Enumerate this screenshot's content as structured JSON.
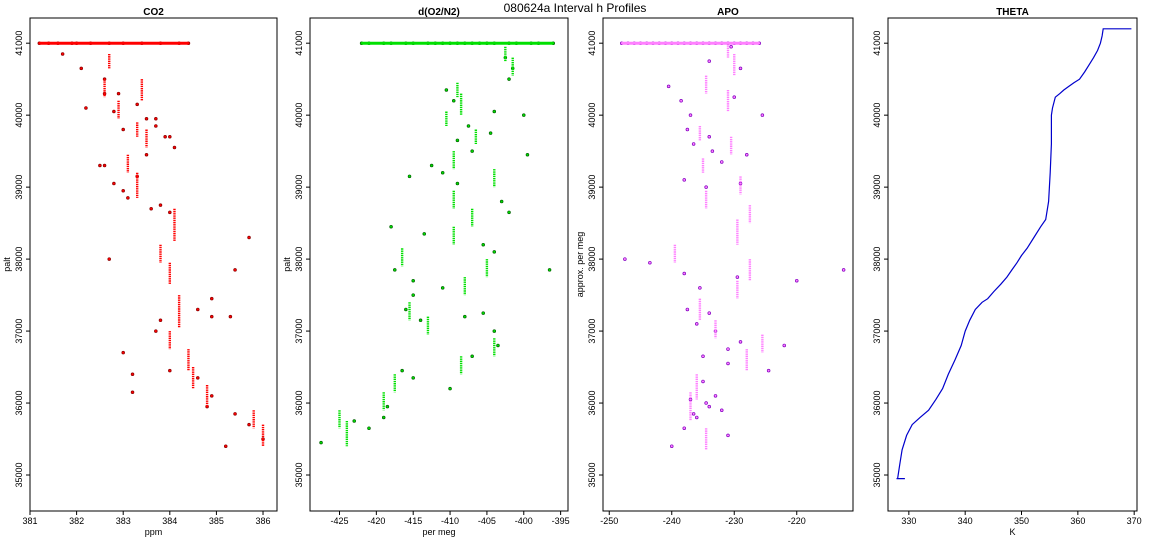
{
  "figure": {
    "title": "080624a   Interval h Profiles"
  },
  "chart_data": [
    {
      "type": "scatter",
      "title": "CO2",
      "xlabel": "ppm",
      "ylabel": "palt",
      "xlim": [
        381,
        386.3
      ],
      "ylim": [
        34500,
        41350
      ],
      "xticks": [
        381,
        382,
        383,
        384,
        385,
        386
      ],
      "yticks": [
        35000,
        36000,
        37000,
        38000,
        39000,
        40000,
        41000
      ],
      "color": "#ff0000",
      "edge_color": "#8b0000",
      "series": [
        {
          "name": "",
          "style": "points",
          "x": [
            381.2,
            381.4,
            381.6,
            381.9,
            382.0,
            382.3,
            382.7,
            383.0,
            383.4,
            383.8,
            384.2,
            384.4,
            381.7,
            382.1,
            382.6,
            382.9,
            383.3,
            383.5,
            383.7,
            384.0,
            384.1,
            382.2,
            382.5,
            382.8,
            383.1,
            383.6
          ],
          "y": [
            41000,
            41000,
            41000,
            41000,
            41000,
            41000,
            41000,
            41000,
            41000,
            41000,
            41000,
            41000,
            40850,
            40650,
            40500,
            40300,
            40150,
            39950,
            39850,
            39700,
            39550,
            40100,
            39300,
            39050,
            38850,
            38700
          ]
        },
        {
          "name": "",
          "style": "points",
          "x": [
            382.6,
            382.8,
            383.7,
            383.0,
            383.9,
            383.5,
            382.6,
            383.3,
            383.0,
            383.8,
            384.0,
            382.7,
            385.7,
            385.4,
            384.9,
            384.6,
            384.9,
            385.3,
            383.8,
            383.7,
            383.0,
            383.2,
            384.0,
            384.6,
            383.2,
            384.9,
            384.8,
            385.4,
            385.7,
            385.2,
            386.0
          ],
          "y": [
            40300,
            40050,
            39950,
            39800,
            39700,
            39450,
            39300,
            39150,
            38950,
            38750,
            38650,
            38000,
            38300,
            37850,
            37450,
            37300,
            37200,
            37200,
            37150,
            37000,
            36700,
            36400,
            36450,
            36350,
            36150,
            36100,
            35950,
            35850,
            35700,
            35400,
            35500
          ]
        },
        {
          "name": "",
          "style": "segments",
          "x": [
            382.7,
            382.6,
            383.4,
            382.9,
            383.3,
            383.5,
            383.1,
            383.3,
            384.1,
            383.8,
            384.0,
            384.2,
            384.0,
            384.4,
            384.5,
            384.8,
            385.8,
            386.0
          ],
          "y0": [
            40850,
            40500,
            40500,
            40200,
            39900,
            39800,
            39450,
            39200,
            38700,
            38200,
            37950,
            37500,
            37000,
            36750,
            36500,
            36250,
            35900,
            35700
          ],
          "y1": [
            40650,
            40250,
            40200,
            39950,
            39700,
            39550,
            39200,
            38850,
            38250,
            37950,
            37650,
            37050,
            36750,
            36450,
            36200,
            35950,
            35650,
            35400
          ]
        }
      ]
    },
    {
      "type": "scatter",
      "title": "d(O2/N2)",
      "xlabel": "per meg",
      "ylabel": "palt",
      "xlim": [
        -429,
        -394
      ],
      "ylim": [
        34500,
        41350
      ],
      "xticks": [
        -425,
        -420,
        -415,
        -410,
        -405,
        -400,
        -395
      ],
      "yticks": [
        35000,
        36000,
        37000,
        38000,
        39000,
        40000,
        41000
      ],
      "color": "#00e000",
      "edge_color": "#006400",
      "series": [
        {
          "name": "",
          "style": "points",
          "x": [
            -422,
            -419,
            -416,
            -413,
            -411,
            -409,
            -407,
            -405,
            -402,
            -399,
            -396,
            -421,
            -418,
            -415,
            -412,
            -410,
            -408,
            -406,
            -404,
            -401,
            -398
          ],
          "y": [
            41000,
            41000,
            41000,
            41000,
            41000,
            41000,
            41000,
            41000,
            41000,
            41000,
            41000,
            41000,
            41000,
            41000,
            41000,
            41000,
            41000,
            41000,
            41000,
            41000,
            41000
          ]
        },
        {
          "name": "",
          "style": "points",
          "x": [
            -402.5,
            -401.5,
            -402.0,
            -410.5,
            -409.5,
            -404.0,
            -400.0,
            -407.5,
            -404.5,
            -409.0,
            -407.0,
            -399.5,
            -412.5,
            -411.0,
            -415.5,
            -409.0,
            -403.0,
            -402.0,
            -418.0,
            -413.5,
            -405.5,
            -404.0,
            -396.5,
            -417.5,
            -415.0,
            -411.0,
            -415.0,
            -416.0,
            -405.5,
            -408.0,
            -414.0,
            -404.0,
            -403.5,
            -407.0,
            -416.5,
            -415.0,
            -410.0,
            -419.0,
            -423.0,
            -421.0,
            -427.5,
            -418.5
          ],
          "y": [
            40800,
            40650,
            40500,
            40350,
            40200,
            40050,
            40000,
            39850,
            39750,
            39650,
            39500,
            39450,
            39300,
            39200,
            39150,
            39050,
            38800,
            38650,
            38450,
            38350,
            38200,
            38100,
            37850,
            37850,
            37700,
            37600,
            37500,
            37300,
            37250,
            37200,
            37150,
            37000,
            36800,
            36650,
            36450,
            36350,
            36200,
            35800,
            35750,
            35650,
            35450,
            35950
          ]
        },
        {
          "name": "",
          "style": "segments",
          "x": [
            -402.5,
            -401.5,
            -409.0,
            -408.5,
            -410.5,
            -406.5,
            -409.5,
            -404.0,
            -409.5,
            -407.0,
            -409.5,
            -416.5,
            -405.0,
            -408.0,
            -415.5,
            -413.0,
            -404.0,
            -408.5,
            -417.5,
            -419.0,
            -425.0,
            -424.0
          ],
          "y0": [
            40950,
            40800,
            40450,
            40300,
            40050,
            39800,
            39500,
            39250,
            38950,
            38700,
            38450,
            38150,
            38000,
            37750,
            37400,
            37200,
            36900,
            36650,
            36400,
            36150,
            35900,
            35750
          ],
          "y1": [
            40750,
            40550,
            40250,
            40000,
            39850,
            39600,
            39250,
            39000,
            38700,
            38450,
            38200,
            37900,
            37750,
            37500,
            37150,
            36950,
            36650,
            36400,
            36150,
            35900,
            35650,
            35400
          ]
        }
      ]
    },
    {
      "type": "scatter",
      "title": "APO",
      "xlabel": "",
      "ylabel": "approx. per meg",
      "xlim": [
        -251,
        -211
      ],
      "ylim": [
        34500,
        41350
      ],
      "xticks": [
        -250,
        -240,
        -230,
        -220
      ],
      "yticks": [
        35000,
        36000,
        37000,
        38000,
        39000,
        40000,
        41000
      ],
      "color": "#ff80ff",
      "edge_color": "#8000c0",
      "series": [
        {
          "name": "",
          "style": "points",
          "x": [
            -248,
            -246,
            -244,
            -242,
            -240,
            -238,
            -236,
            -234,
            -232,
            -230,
            -228,
            -226,
            -247,
            -245,
            -243,
            -241,
            -239,
            -237,
            -235,
            -233,
            -231,
            -229,
            -227
          ],
          "y": [
            41000,
            41000,
            41000,
            41000,
            41000,
            41000,
            41000,
            41000,
            41000,
            41000,
            41000,
            41000,
            41000,
            41000,
            41000,
            41000,
            41000,
            41000,
            41000,
            41000,
            41000,
            41000,
            41000
          ]
        },
        {
          "name": "",
          "style": "points",
          "x": [
            -230.5,
            -234.0,
            -229.0,
            -240.5,
            -238.5,
            -237.0,
            -230.0,
            -225.5,
            -237.5,
            -234.0,
            -236.5,
            -233.5,
            -228.0,
            -232.0,
            -238.0,
            -229.0,
            -234.5,
            -247.5,
            -243.5,
            -238.0,
            -229.5,
            -235.5,
            -220.0,
            -212.5,
            -237.5,
            -234.0,
            -236.0,
            -233.0,
            -229.0,
            -231.0,
            -235.0,
            -222.0,
            -231.0,
            -224.5,
            -235.0,
            -233.0,
            -234.0,
            -237.0,
            -236.5,
            -232.0,
            -238.0,
            -240.0,
            -231.0,
            -236.0,
            -234.5
          ],
          "y": [
            40950,
            40750,
            40650,
            40400,
            40200,
            40000,
            40250,
            40000,
            39800,
            39700,
            39600,
            39500,
            39450,
            39350,
            39100,
            39050,
            39000,
            38000,
            37950,
            37800,
            37750,
            37600,
            37700,
            37850,
            37300,
            37250,
            37100,
            37000,
            36850,
            36750,
            36650,
            36800,
            36550,
            36450,
            36300,
            36100,
            35950,
            36050,
            35850,
            35900,
            35650,
            35400,
            35550,
            35800,
            36000
          ]
        },
        {
          "name": "",
          "style": "segments",
          "x": [
            -231.0,
            -230.0,
            -234.5,
            -231.0,
            -235.5,
            -230.5,
            -235.0,
            -229.0,
            -234.5,
            -227.5,
            -229.5,
            -239.5,
            -227.5,
            -229.5,
            -235.5,
            -233.0,
            -225.5,
            -228.0,
            -236.0,
            -237.0,
            -234.5
          ],
          "y0": [
            41000,
            40850,
            40550,
            40350,
            39850,
            39700,
            39400,
            39150,
            38950,
            38750,
            38550,
            38200,
            38000,
            37700,
            37450,
            37150,
            36950,
            36750,
            36400,
            36150,
            35650
          ],
          "y1": [
            40800,
            40550,
            40300,
            40050,
            39650,
            39450,
            39200,
            38900,
            38700,
            38500,
            38200,
            37950,
            37700,
            37450,
            37150,
            36900,
            36700,
            36450,
            36050,
            35750,
            35350
          ]
        }
      ]
    },
    {
      "type": "line",
      "title": "THETA",
      "xlabel": "K",
      "ylabel": "",
      "xlim": [
        326.3,
        370.5
      ],
      "ylim": [
        34500,
        41350
      ],
      "xticks": [
        330,
        340,
        350,
        360,
        370
      ],
      "yticks": [
        35000,
        36000,
        37000,
        38000,
        39000,
        40000,
        41000
      ],
      "color": "#0000cc",
      "series": [
        {
          "name": "",
          "style": "line",
          "x": [
            327.8,
            329.3,
            328.0,
            328.4,
            328.8,
            329.6,
            330.6,
            332.0,
            333.5,
            334.8,
            336.0,
            337.0,
            338.2,
            339.3,
            340.0,
            340.8,
            341.8,
            343.0,
            344.0,
            345.1,
            346.3,
            347.4,
            348.3,
            349.2,
            350.0,
            351.0,
            352.2,
            353.4,
            354.3,
            354.8,
            355.1,
            355.3,
            355.3,
            355.5,
            356.0,
            356.8,
            357.5,
            358.4,
            359.3,
            360.3,
            361.2,
            362.0,
            362.8,
            363.5,
            364.0,
            364.3,
            364.5,
            364.8,
            366.5,
            368.0,
            369.5
          ],
          "y": [
            34950,
            34950,
            34950,
            35150,
            35350,
            35550,
            35700,
            35800,
            35900,
            36050,
            36200,
            36400,
            36600,
            36800,
            37000,
            37150,
            37300,
            37400,
            37450,
            37550,
            37650,
            37750,
            37850,
            37950,
            38050,
            38150,
            38300,
            38450,
            38550,
            38800,
            39200,
            39600,
            40000,
            40100,
            40250,
            40300,
            40350,
            40400,
            40450,
            40500,
            40600,
            40700,
            40800,
            40900,
            41000,
            41100,
            41200,
            41200,
            41200,
            41200,
            41200
          ]
        }
      ]
    }
  ]
}
